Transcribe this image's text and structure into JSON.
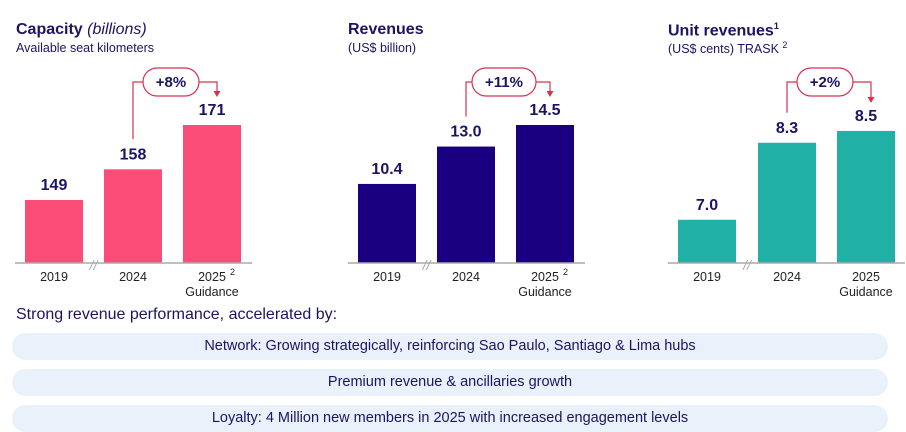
{
  "colors": {
    "capacity": "#fc4c78",
    "revenues": "#1a0080",
    "unit": "#21b0a6",
    "label": "#1b1464",
    "arrow": "#d9304f"
  },
  "chart_data": [
    {
      "type": "bar",
      "title": "Capacity",
      "title_italic": "(billions)",
      "subtitle": "Available seat kilometers",
      "categories": [
        "2019",
        "2024",
        "2025"
      ],
      "category_sup": [
        "",
        "",
        "2"
      ],
      "category_sub": [
        "",
        "",
        "Guidance"
      ],
      "values": [
        149,
        158,
        171
      ],
      "value_labels": [
        "149",
        "158",
        "171"
      ],
      "ylim": [
        130.5,
        171
      ],
      "growth": {
        "label": "+8%",
        "from": "2024",
        "to": "2025"
      },
      "axis_break": "//"
    },
    {
      "type": "bar",
      "title": "Revenues",
      "subtitle": "(US$ billion)",
      "categories": [
        "2019",
        "2024",
        "2025"
      ],
      "category_sup": [
        "",
        "",
        "2"
      ],
      "category_sub": [
        "",
        "",
        "Guidance"
      ],
      "values": [
        10.4,
        13.0,
        14.5
      ],
      "value_labels": [
        "10.4",
        "13.0",
        "14.5"
      ],
      "ylim": [
        4.9,
        14.5
      ],
      "growth": {
        "label": "+11%",
        "from": "2024",
        "to": "2025"
      },
      "axis_break": "//"
    },
    {
      "type": "bar",
      "title": "Unit revenues",
      "title_sup": "1",
      "subtitle": "(US$ cents) TRASK",
      "subtitle_sup": "2",
      "categories": [
        "2019",
        "2024",
        "2025"
      ],
      "category_sup": [
        "",
        "",
        ""
      ],
      "category_sub": [
        "",
        "",
        "Guidance"
      ],
      "values": [
        7.0,
        8.3,
        8.5
      ],
      "value_labels": [
        "7.0",
        "8.3",
        "8.5"
      ],
      "ylim": [
        6.27,
        8.6
      ],
      "growth": {
        "label": "+2%",
        "from": "2024",
        "to": "2025"
      },
      "axis_break": "//"
    }
  ],
  "summary": {
    "lead": "Strong revenue performance, accelerated by:",
    "items": [
      "Network: Growing strategically, reinforcing Sao Paulo, Santiago & Lima hubs",
      "Premium revenue & ancillaries growth",
      "Loyalty: 4 Million new members in 2025 with increased engagement levels"
    ]
  }
}
